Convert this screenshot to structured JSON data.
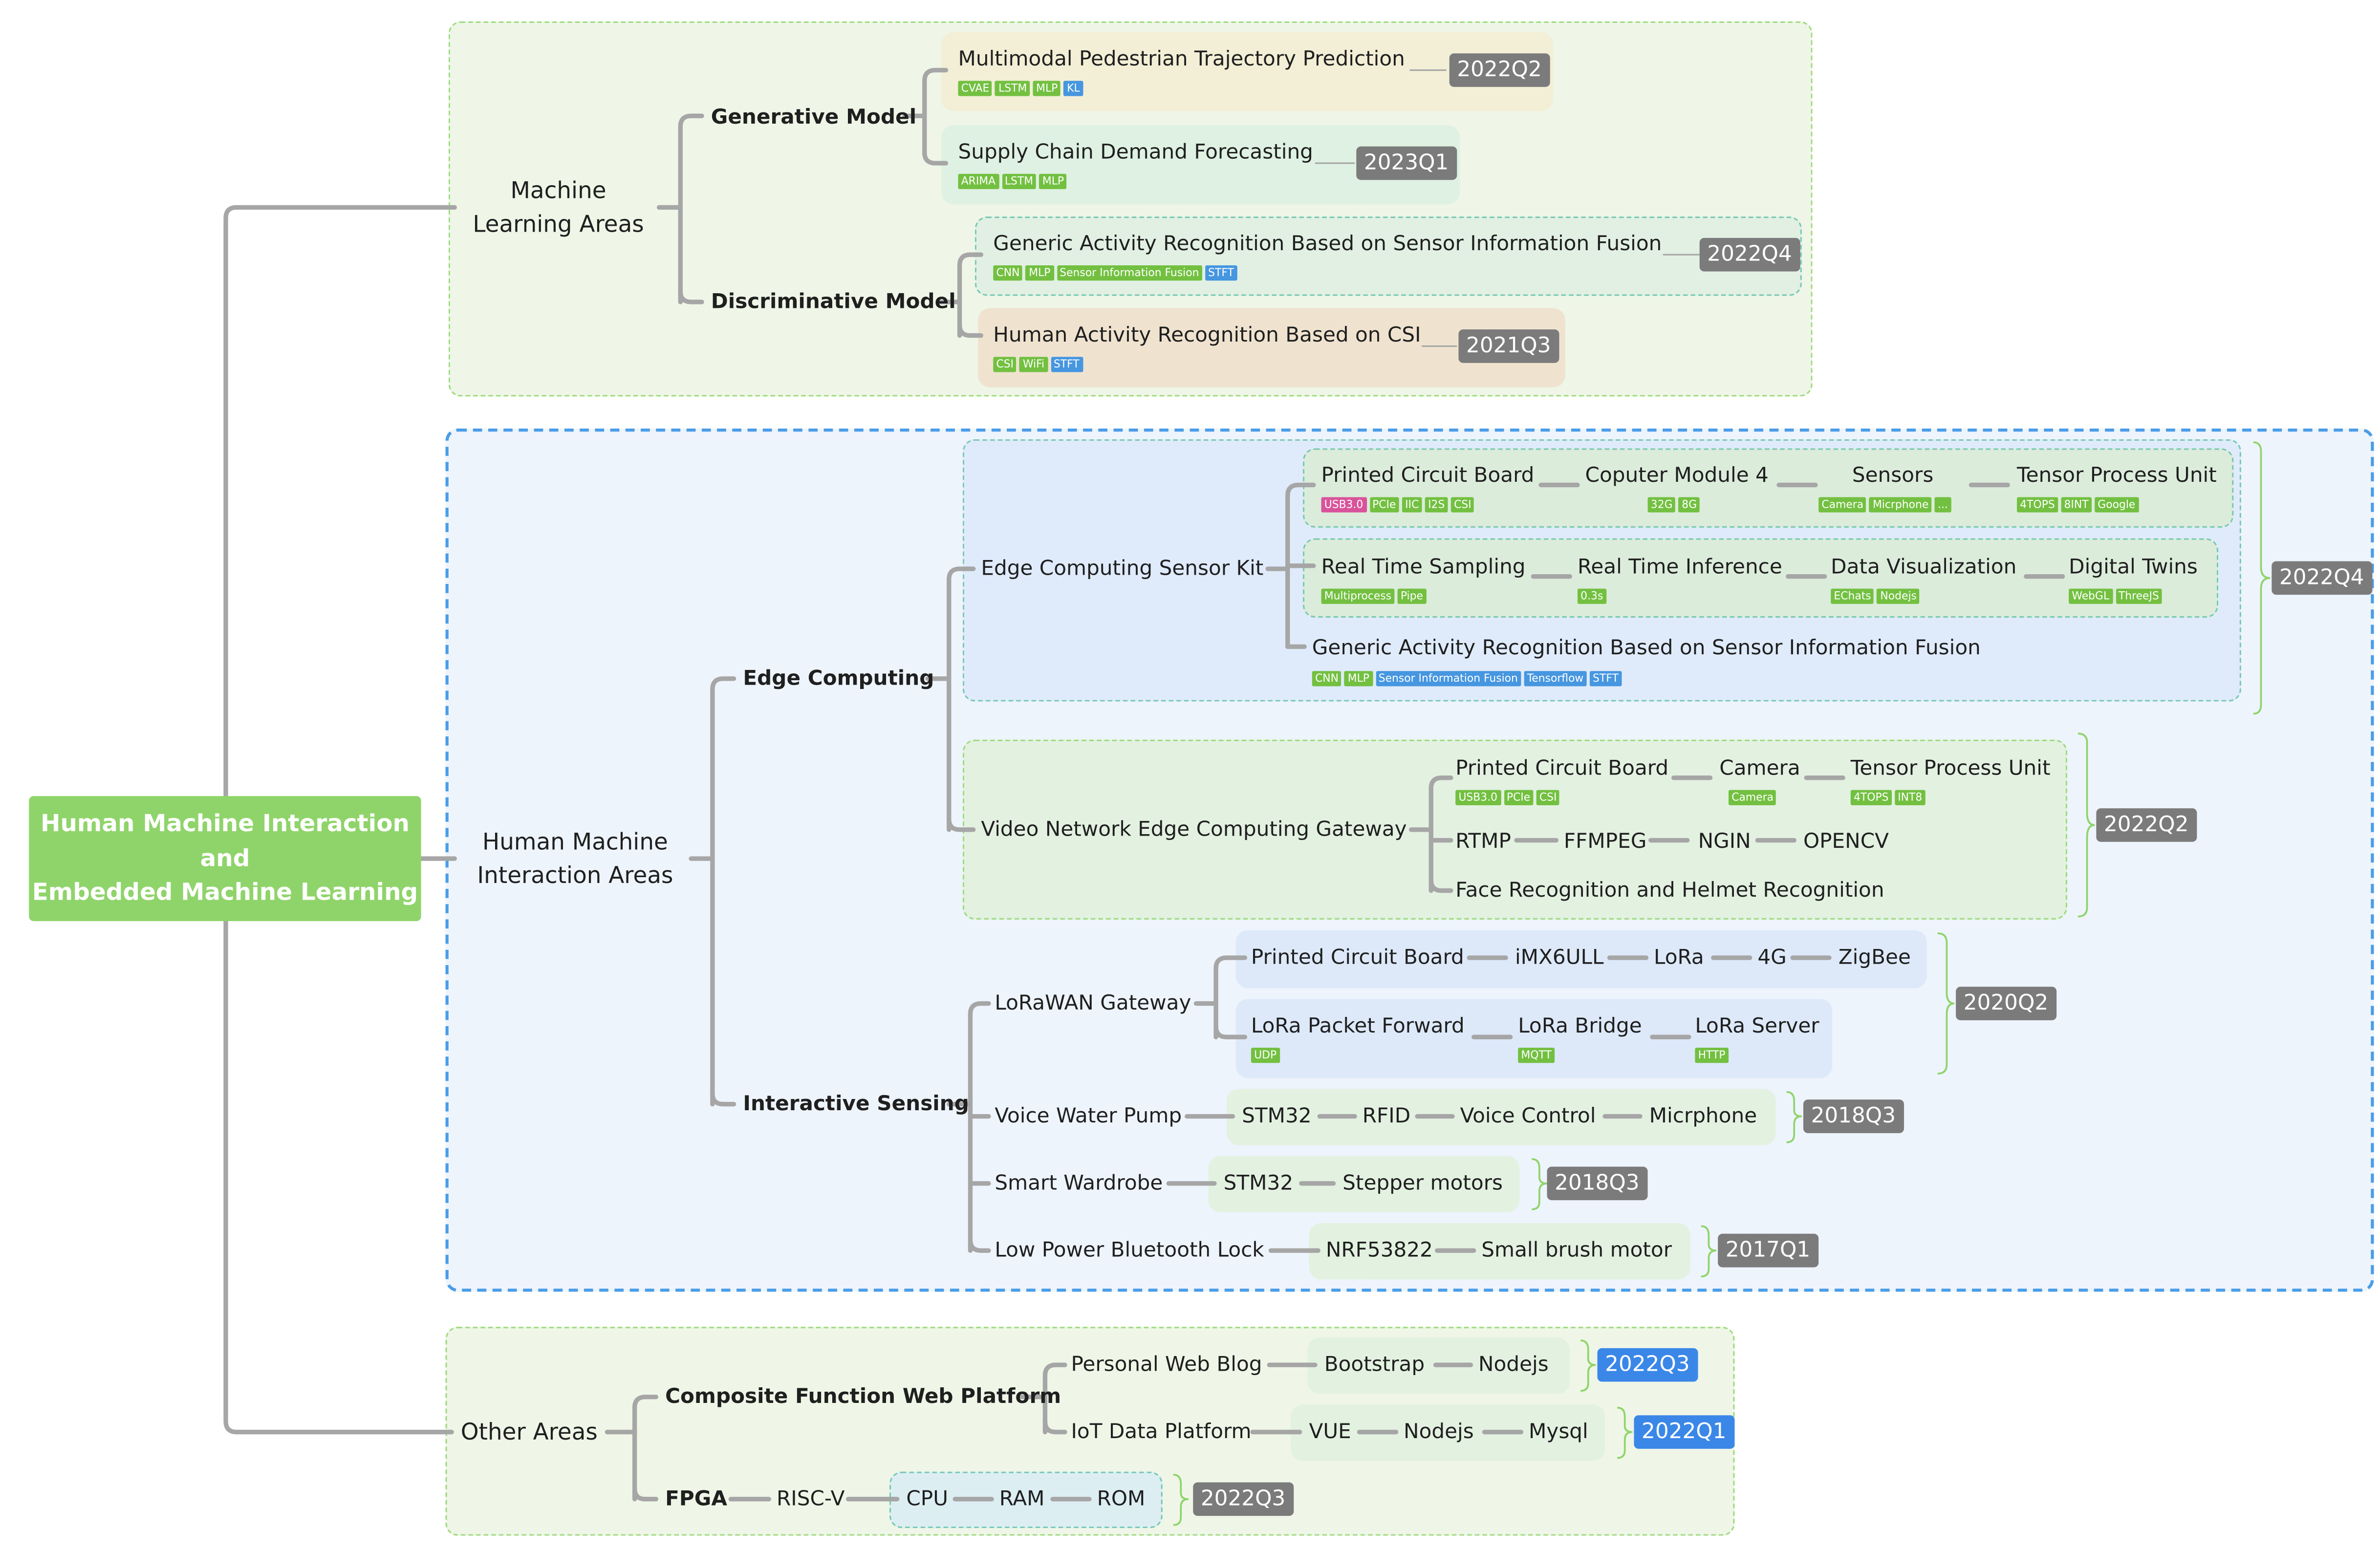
{
  "root": {
    "line1": "Human Machine Interaction",
    "line2": "and",
    "line3": "Embedded Machine Learning"
  },
  "ml": {
    "area_line1": "Machine",
    "area_line2": "Learning Areas",
    "generative": "Generative Model",
    "discriminative": "Discriminative Model",
    "p1": {
      "title": "Multimodal Pedestrian Trajectory Prediction",
      "tags": [
        "CVAE",
        "LSTM",
        "MLP",
        "KL"
      ],
      "date": "2022Q2"
    },
    "p2": {
      "title": "Supply Chain Demand Forecasting",
      "tags": [
        "ARIMA",
        "LSTM",
        "MLP"
      ],
      "date": "2023Q1"
    },
    "p3": {
      "title": "Generic Activity Recognition Based on Sensor Information Fusion",
      "tags": [
        "CNN",
        "MLP",
        "Sensor Information Fusion",
        "STFT"
      ],
      "date": "2022Q4"
    },
    "p4": {
      "title": "Human Activity Recognition Based on CSI",
      "tags": [
        "CSI",
        "WiFi",
        "STFT"
      ],
      "date": "2021Q3"
    }
  },
  "hmi": {
    "area_line1": "Human Machine",
    "area_line2": "Interaction Areas",
    "edge": "Edge Computing",
    "sensing": "Interactive Sensing",
    "kit": {
      "title": "Edge Computing Sensor Kit",
      "date": "2022Q4",
      "row1": [
        {
          "label": "Printed Circuit Board",
          "tags": [
            "USB3.0",
            "PCIe",
            "IIC",
            "I2S",
            "CSI"
          ]
        },
        {
          "label": "Coputer Module 4",
          "tags": [
            "32G",
            "8G"
          ]
        },
        {
          "label": "Sensors",
          "tags": [
            "Camera",
            "Micrphone",
            "..."
          ]
        },
        {
          "label": "Tensor Process Unit",
          "tags": [
            "4TOPS",
            "8INT",
            "Google"
          ]
        }
      ],
      "row2": [
        {
          "label": "Real Time Sampling",
          "tags": [
            "Multiprocess",
            "Pipe"
          ]
        },
        {
          "label": "Real Time Inference",
          "tags": [
            "0.3s"
          ]
        },
        {
          "label": "Data Visualization",
          "tags": [
            "EChats",
            "Nodejs"
          ]
        },
        {
          "label": "Digital Twins",
          "tags": [
            "WebGL",
            "ThreeJS"
          ]
        }
      ],
      "row3": {
        "label": "Generic Activity Recognition Based on Sensor Information Fusion",
        "tags": [
          "CNN",
          "MLP",
          "Sensor Information Fusion",
          "Tensorflow",
          "STFT"
        ]
      }
    },
    "video": {
      "title": "Video Network Edge Computing Gateway",
      "date": "2022Q2",
      "row1": [
        {
          "label": "Printed Circuit Board",
          "tags": [
            "USB3.0",
            "PCIe",
            "CSI"
          ]
        },
        {
          "label": "Camera",
          "tags": [
            "Camera"
          ]
        },
        {
          "label": "Tensor Process Unit",
          "tags": [
            "4TOPS",
            "INT8"
          ]
        }
      ],
      "row2": [
        "RTMP",
        "FFMPEG",
        "NGIN",
        "OPENCV"
      ],
      "row3": "Face Recognition and Helmet Recognition"
    },
    "lora": {
      "title": "LoRaWAN Gateway",
      "date": "2020Q2",
      "row1": [
        "Printed Circuit Board",
        "iMX6ULL",
        "LoRa",
        "4G",
        "ZigBee"
      ],
      "row2": [
        {
          "label": "LoRa Packet Forward",
          "tags": [
            "UDP"
          ]
        },
        {
          "label": "LoRa Bridge",
          "tags": [
            "MQTT"
          ]
        },
        {
          "label": "LoRa Server",
          "tags": [
            "HTTP"
          ]
        }
      ]
    },
    "pump": {
      "title": "Voice Water Pump",
      "items": [
        "STM32",
        "RFID",
        "Voice Control",
        "Micrphone"
      ],
      "date": "2018Q3"
    },
    "wardrobe": {
      "title": "Smart Wardrobe",
      "items": [
        "STM32",
        "Stepper motors"
      ],
      "date": "2018Q3"
    },
    "lock": {
      "title": "Low Power Bluetooth Lock",
      "items": [
        "NRF53822",
        "Small brush motor"
      ],
      "date": "2017Q1"
    }
  },
  "other": {
    "area": "Other Areas",
    "web": "Composite Function Web Platform",
    "blog": {
      "title": "Personal Web Blog",
      "items": [
        "Bootstrap",
        "Nodejs"
      ],
      "date": "2022Q3"
    },
    "iot": {
      "title": "IoT Data Platform",
      "items": [
        "VUE",
        "Nodejs",
        "Mysql"
      ],
      "date": "2022Q1"
    },
    "fpga": {
      "title": "FPGA",
      "isa": "RISC-V",
      "items": [
        "CPU",
        "RAM",
        "ROM"
      ],
      "date": "2022Q3"
    }
  },
  "colors": {
    "line": "#a6a6a6",
    "date": "#7b7b7b",
    "date_blue": "#3b87e8",
    "tag": "#73c041",
    "root": "#8fd46a"
  }
}
